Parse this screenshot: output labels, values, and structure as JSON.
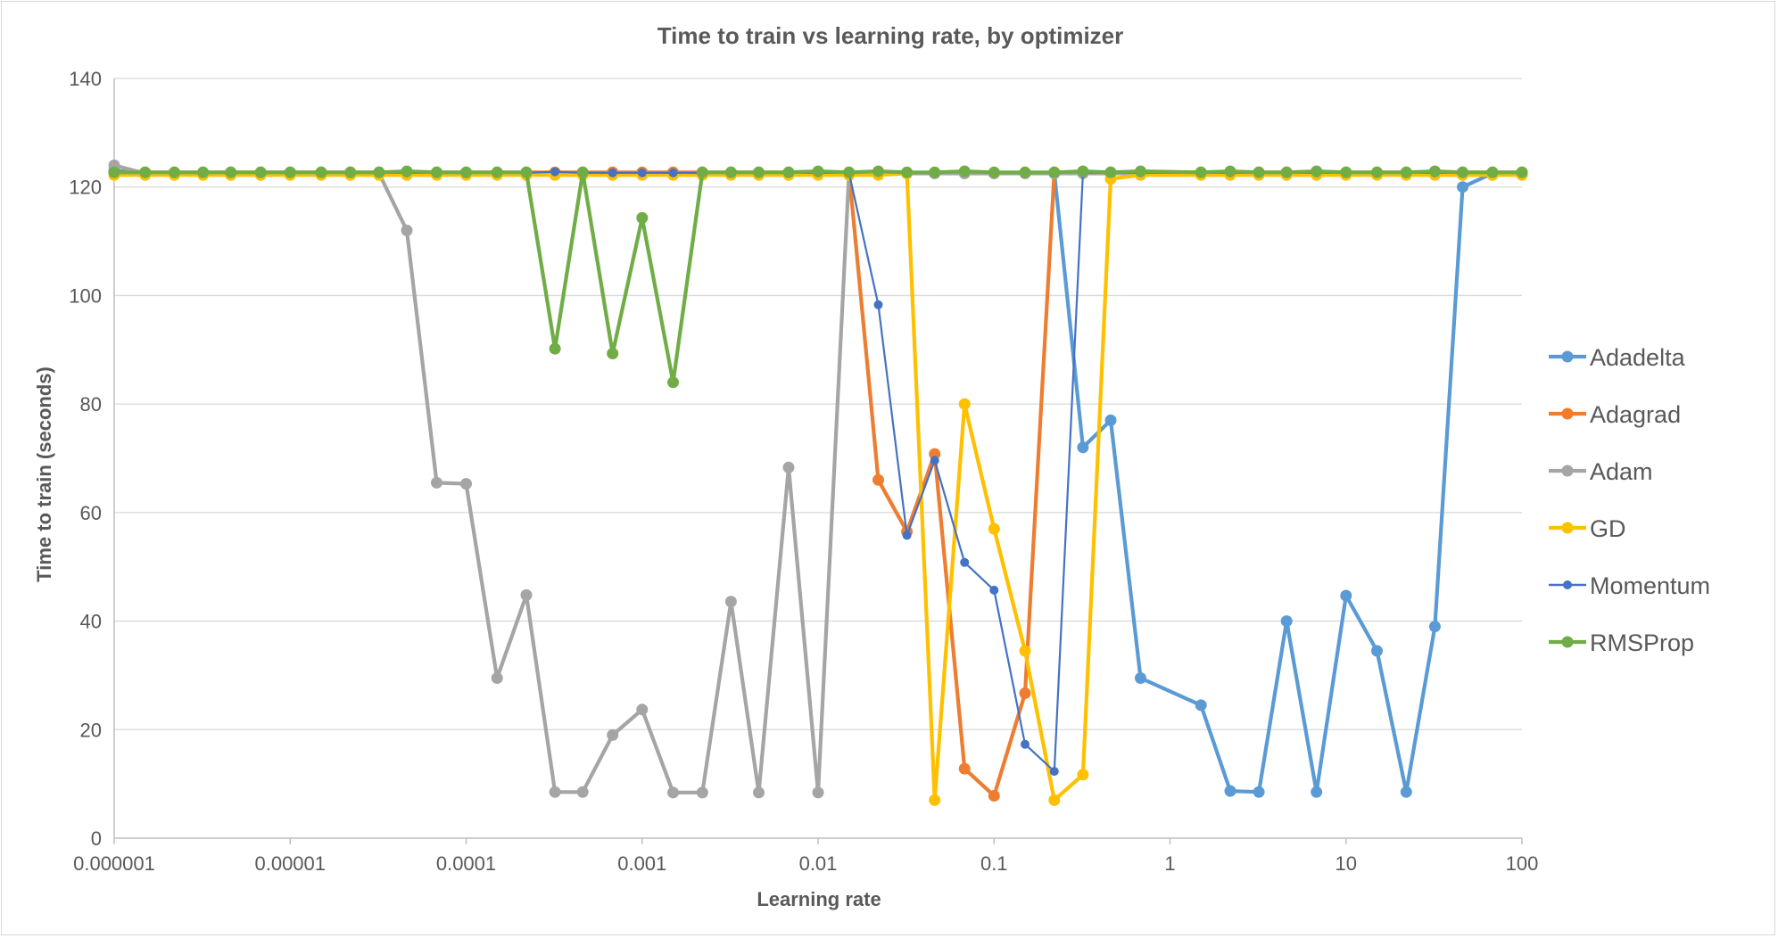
{
  "chart_data": {
    "type": "scatter",
    "title": "Time to train vs learning rate, by optimizer",
    "xlabel": "Learning rate",
    "ylabel": "Time to train (seconds)",
    "x_scale": "log",
    "xlim": [
      1e-06,
      100
    ],
    "ylim": [
      0,
      140
    ],
    "x_ticks": [
      1e-06,
      1e-05,
      0.0001,
      0.001,
      0.01,
      0.1,
      1,
      10,
      100
    ],
    "x_tick_labels": [
      "0.000001",
      "0.00001",
      "0.0001",
      "0.001",
      "0.01",
      "0.1",
      "1",
      "10",
      "100"
    ],
    "y_ticks": [
      0,
      20,
      40,
      60,
      80,
      100,
      120,
      140
    ],
    "y_tick_labels": [
      "0",
      "20",
      "40",
      "60",
      "80",
      "100",
      "120",
      "140"
    ],
    "grid": "horizontal",
    "legend_position": "right",
    "series": [
      {
        "name": "Adadelta",
        "color": "#5B9BD5",
        "x": [
          1e-06,
          1.5e-06,
          2.2e-06,
          3.2e-06,
          4.6e-06,
          6.8e-06,
          1e-05,
          1.5e-05,
          2.2e-05,
          3.2e-05,
          4.6e-05,
          6.8e-05,
          0.0001,
          0.00015,
          0.00022,
          0.00032,
          0.00046,
          0.00068,
          0.001,
          0.0015,
          0.0022,
          0.0032,
          0.0046,
          0.0068,
          0.01,
          0.015,
          0.022,
          0.032,
          0.046,
          0.068,
          0.1,
          0.15,
          0.22,
          0.32,
          0.46,
          0.68,
          1.5,
          2.2,
          3.2,
          4.6,
          6.8,
          10,
          15,
          22,
          32,
          46,
          68,
          100
        ],
        "y": [
          123,
          122.6,
          122.6,
          122.6,
          122.6,
          122.6,
          122.6,
          122.6,
          122.6,
          122.6,
          122.6,
          122.6,
          122.6,
          122.6,
          122.6,
          122.6,
          122.6,
          122.6,
          122.6,
          122.6,
          122.6,
          122.6,
          122.6,
          122.6,
          122.6,
          122.6,
          122.6,
          122.6,
          122.6,
          122.6,
          122.6,
          122.6,
          122.6,
          72,
          77,
          29.5,
          24.5,
          8.7,
          8.5,
          40,
          8.5,
          44.7,
          34.5,
          8.5,
          39,
          120,
          122.5,
          122.5
        ]
      },
      {
        "name": "Adagrad",
        "color": "#ED7D31",
        "x": [
          1e-06,
          1.5e-06,
          2.2e-06,
          3.2e-06,
          4.6e-06,
          6.8e-06,
          1e-05,
          1.5e-05,
          2.2e-05,
          3.2e-05,
          4.6e-05,
          6.8e-05,
          0.0001,
          0.00015,
          0.00022,
          0.00032,
          0.00046,
          0.00068,
          0.001,
          0.0015,
          0.0022,
          0.0032,
          0.0046,
          0.0068,
          0.01,
          0.015,
          0.022,
          0.032,
          0.046,
          0.068,
          0.1,
          0.15,
          0.22,
          0.32,
          0.46,
          0.68,
          1.5,
          2.2,
          3.2,
          4.6,
          6.8,
          10,
          15,
          22,
          32,
          46,
          68,
          100
        ],
        "y": [
          122.7,
          122.7,
          122.7,
          122.7,
          122.7,
          122.7,
          122.7,
          122.7,
          122.7,
          122.7,
          122.7,
          122.7,
          122.7,
          122.7,
          122.7,
          122.7,
          122.7,
          122.7,
          122.7,
          122.7,
          122.7,
          122.7,
          122.7,
          122.7,
          122.7,
          122.7,
          66,
          56.5,
          70.8,
          12.8,
          7.8,
          26.7,
          122.7,
          122.7,
          122.7,
          122.7,
          122.7,
          122.7,
          122.7,
          122.7,
          122.7,
          122.7,
          122.7,
          122.7,
          122.7,
          122.7,
          122.7,
          122.7
        ]
      },
      {
        "name": "Adam",
        "color": "#A5A5A5",
        "x": [
          1e-06,
          1.5e-06,
          2.2e-06,
          3.2e-06,
          4.6e-06,
          6.8e-06,
          1e-05,
          1.5e-05,
          2.2e-05,
          3.2e-05,
          4.6e-05,
          6.8e-05,
          0.0001,
          0.00015,
          0.00022,
          0.00032,
          0.00046,
          0.00068,
          0.001,
          0.0015,
          0.0022,
          0.0032,
          0.0046,
          0.0068,
          0.01,
          0.015,
          0.022,
          0.032,
          0.046,
          0.068,
          0.1,
          0.15,
          0.22,
          0.32,
          0.46,
          0.68,
          1.5,
          2.2,
          3.2,
          4.6,
          6.8,
          10,
          15,
          22,
          32,
          46,
          68,
          100
        ],
        "y": [
          124,
          122.5,
          122.5,
          122.5,
          122.5,
          122.5,
          122.5,
          122.5,
          122.5,
          122.5,
          112,
          65.5,
          65.3,
          29.5,
          44.8,
          8.5,
          8.5,
          19,
          23.7,
          8.4,
          8.4,
          43.6,
          8.4,
          68.3,
          8.4,
          122.5,
          122.5,
          122.5,
          122.5,
          122.5,
          122.5,
          122.5,
          122.5,
          122.5,
          122.5,
          122.5,
          122.5,
          122.5,
          122.5,
          122.5,
          122.5,
          122.5,
          122.5,
          122.5,
          122.5,
          122.5,
          122.5,
          122.5
        ]
      },
      {
        "name": "GD",
        "color": "#FFC000",
        "x": [
          1e-06,
          1.5e-06,
          2.2e-06,
          3.2e-06,
          4.6e-06,
          6.8e-06,
          1e-05,
          1.5e-05,
          2.2e-05,
          3.2e-05,
          4.6e-05,
          6.8e-05,
          0.0001,
          0.00015,
          0.00022,
          0.00032,
          0.00046,
          0.00068,
          0.001,
          0.0015,
          0.0022,
          0.0032,
          0.0046,
          0.0068,
          0.01,
          0.015,
          0.022,
          0.032,
          0.046,
          0.068,
          0.1,
          0.15,
          0.22,
          0.32,
          0.46,
          0.68,
          1.5,
          2.2,
          3.2,
          4.6,
          6.8,
          10,
          15,
          22,
          32,
          46,
          68,
          100
        ],
        "y": [
          122.2,
          122.2,
          122.2,
          122.2,
          122.2,
          122.2,
          122.2,
          122.2,
          122.2,
          122.2,
          122.2,
          122.2,
          122.2,
          122.2,
          122.2,
          122.2,
          122.2,
          122.2,
          122.2,
          122.2,
          122.2,
          122.2,
          122.2,
          122.2,
          122.2,
          122.2,
          122.2,
          122.5,
          7,
          80,
          57,
          34.5,
          7,
          11.7,
          121.5,
          122.2,
          122.2,
          122.2,
          122.2,
          122.2,
          122.2,
          122.2,
          122.2,
          122.2,
          122.2,
          122.2,
          122.2,
          122.2
        ]
      },
      {
        "name": "Momentum",
        "color": "#4472C4",
        "x": [
          1e-06,
          1.5e-06,
          2.2e-06,
          3.2e-06,
          4.6e-06,
          6.8e-06,
          1e-05,
          1.5e-05,
          2.2e-05,
          3.2e-05,
          4.6e-05,
          6.8e-05,
          0.0001,
          0.00015,
          0.00022,
          0.00032,
          0.00046,
          0.00068,
          0.001,
          0.0015,
          0.0022,
          0.0032,
          0.0046,
          0.0068,
          0.01,
          0.015,
          0.022,
          0.032,
          0.046,
          0.068,
          0.1,
          0.15,
          0.22,
          0.32,
          0.46,
          0.68,
          1.5,
          2.2,
          3.2,
          4.6,
          6.8,
          10,
          15,
          22,
          32,
          46,
          68,
          100
        ],
        "y": [
          122.6,
          122.6,
          122.6,
          122.6,
          122.6,
          122.6,
          122.6,
          122.6,
          122.6,
          122.6,
          122.6,
          122.6,
          122.6,
          122.6,
          122.6,
          122.8,
          122.6,
          122.6,
          122.6,
          122.6,
          122.6,
          122.6,
          122.6,
          122.6,
          122.6,
          122.6,
          98.3,
          55.8,
          69.6,
          50.8,
          45.7,
          17.3,
          12.3,
          122.6,
          122.6,
          122.6,
          122.6,
          122.6,
          122.6,
          122.6,
          122.6,
          122.6,
          122.6,
          122.6,
          122.6,
          122.6,
          122.6,
          122.6
        ]
      },
      {
        "name": "RMSProp",
        "color": "#70AD47",
        "x": [
          1e-06,
          1.5e-06,
          2.2e-06,
          3.2e-06,
          4.6e-06,
          6.8e-06,
          1e-05,
          1.5e-05,
          2.2e-05,
          3.2e-05,
          4.6e-05,
          6.8e-05,
          0.0001,
          0.00015,
          0.00022,
          0.00032,
          0.00046,
          0.00068,
          0.001,
          0.0015,
          0.0022,
          0.0032,
          0.0046,
          0.0068,
          0.01,
          0.015,
          0.022,
          0.032,
          0.046,
          0.068,
          0.1,
          0.15,
          0.22,
          0.32,
          0.46,
          0.68,
          1.5,
          2.2,
          3.2,
          4.6,
          6.8,
          10,
          15,
          22,
          32,
          46,
          68,
          100
        ],
        "y": [
          122.7,
          122.7,
          122.7,
          122.7,
          122.7,
          122.7,
          122.7,
          122.7,
          122.7,
          122.7,
          122.9,
          122.7,
          122.7,
          122.7,
          122.7,
          90.2,
          122.7,
          89.3,
          114.3,
          84,
          122.7,
          122.7,
          122.7,
          122.7,
          122.9,
          122.7,
          122.9,
          122.7,
          122.7,
          122.9,
          122.7,
          122.7,
          122.7,
          122.9,
          122.7,
          122.9,
          122.7,
          122.9,
          122.7,
          122.7,
          122.9,
          122.7,
          122.7,
          122.7,
          122.9,
          122.7,
          122.7,
          122.7
        ]
      }
    ]
  }
}
